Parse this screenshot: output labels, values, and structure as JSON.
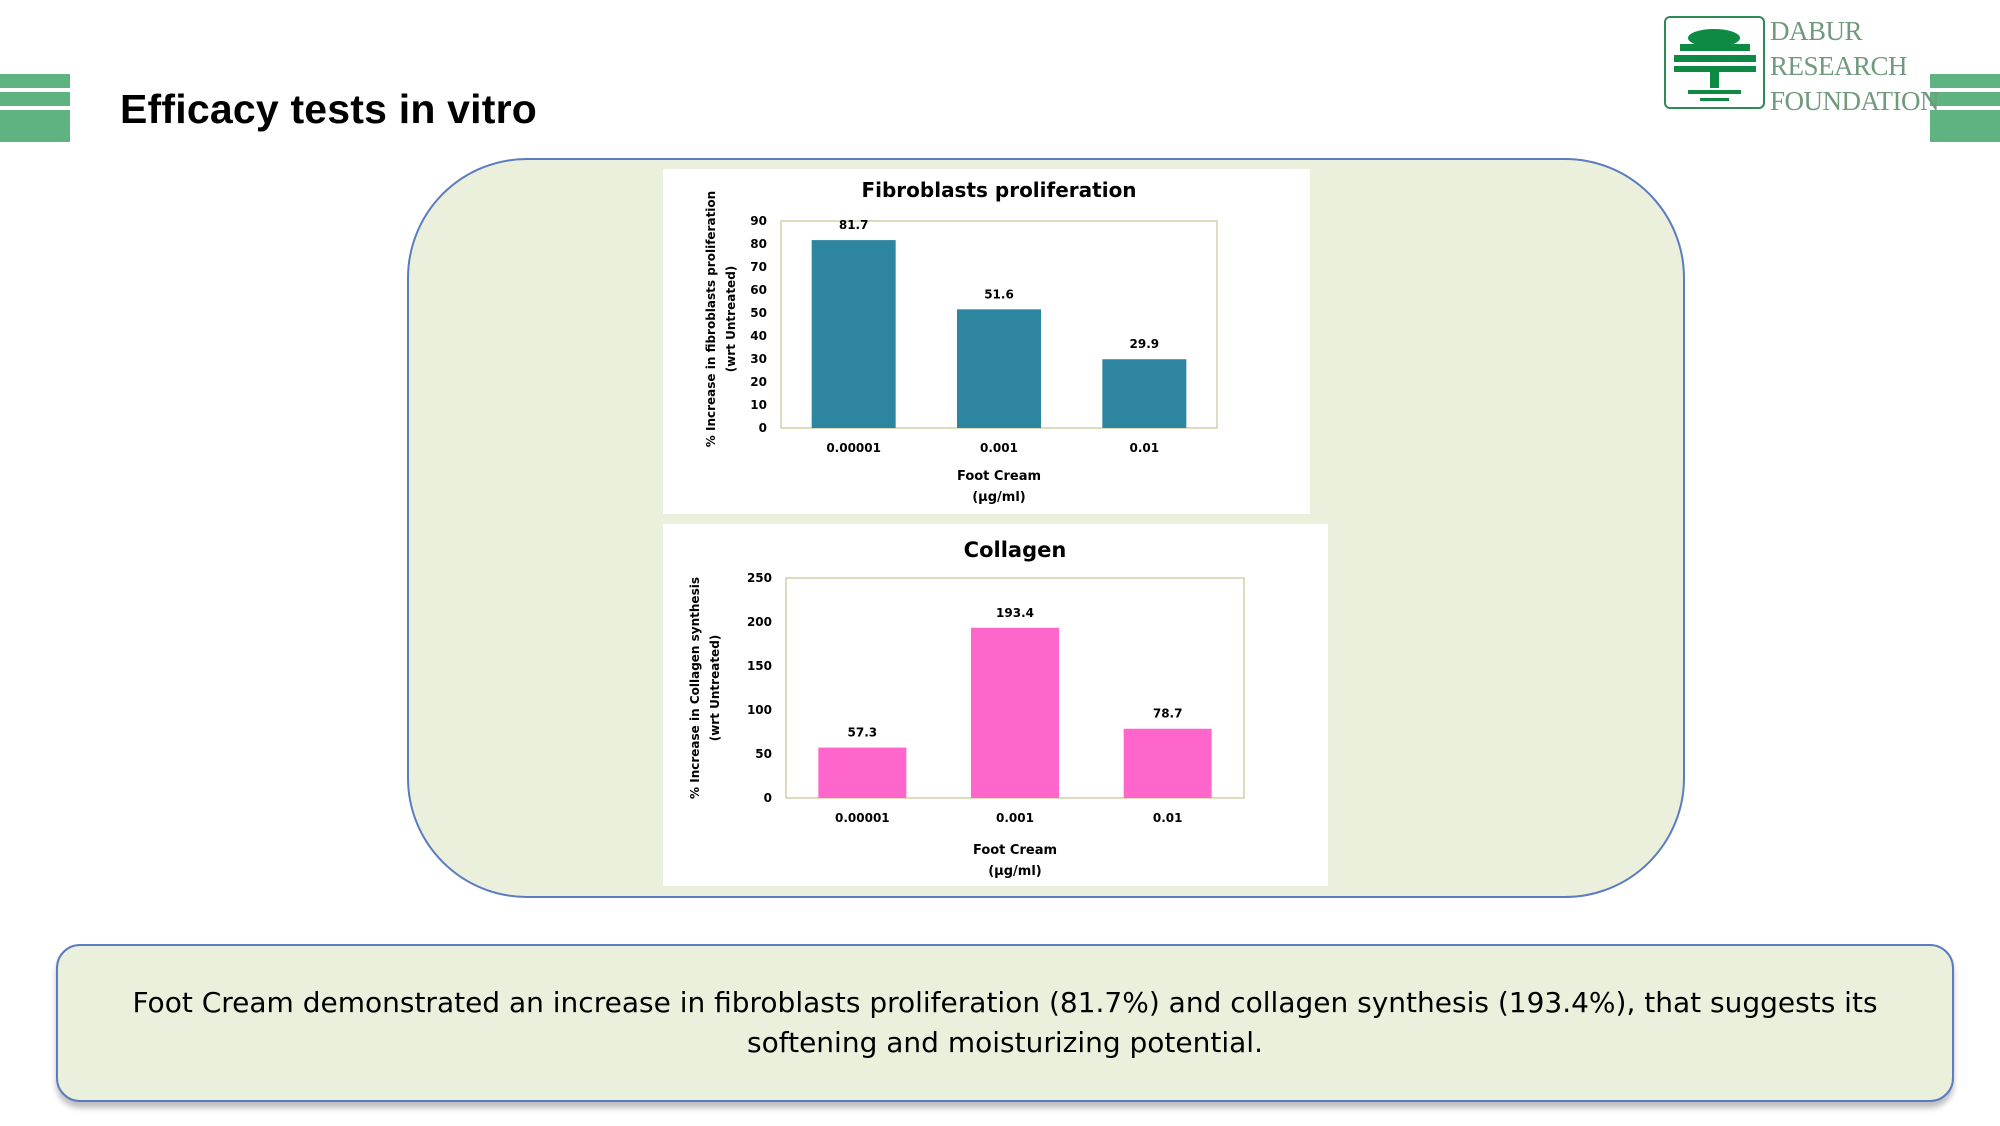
{
  "page": {
    "title": "Efficacy tests in vitro"
  },
  "logo": {
    "lines": [
      "DABUR",
      "RESEARCH",
      "FOUNDATION"
    ]
  },
  "summary": {
    "text": "Foot Cream demonstrated an increase in fibroblasts proliferation (81.7%) and collagen synthesis (193.4%), that suggests its softening and moisturizing potential."
  },
  "colors": {
    "stripe": "#5fb380",
    "panel": "#ebf0dd",
    "panel_border": "#5b7cc0",
    "bar_teal": "#2e85a0",
    "bar_pink": "#ff66cc"
  },
  "chart_data": [
    {
      "type": "bar",
      "title": "Fibroblasts proliferation",
      "ylabel": [
        "% Increase in fibroblasts proliferation",
        "(wrt Untreated)"
      ],
      "xlabel": [
        "Foot Cream",
        "(µg/ml)"
      ],
      "categories": [
        "0.00001",
        "0.001",
        "0.01"
      ],
      "values": [
        81.7,
        51.6,
        29.9
      ],
      "data_labels": [
        "81.7",
        "51.6",
        "29.9"
      ],
      "ylim": [
        0,
        90
      ],
      "yticks": [
        0,
        10,
        20,
        30,
        40,
        50,
        60,
        70,
        80,
        90
      ],
      "color": "#2e85a0",
      "grid": false
    },
    {
      "type": "bar",
      "title": "Collagen",
      "ylabel": [
        "% Increase in Collagen synthesis",
        "(wrt Untreated)"
      ],
      "xlabel": [
        "Foot Cream",
        "(µg/ml)"
      ],
      "categories": [
        "0.00001",
        "0.001",
        "0.01"
      ],
      "values": [
        57.3,
        193.4,
        78.7
      ],
      "data_labels": [
        "57.3",
        "193.4",
        "78.7"
      ],
      "ylim": [
        0,
        250
      ],
      "yticks": [
        0,
        50,
        100,
        150,
        200,
        250
      ],
      "color": "#ff66cc",
      "grid": false
    }
  ]
}
